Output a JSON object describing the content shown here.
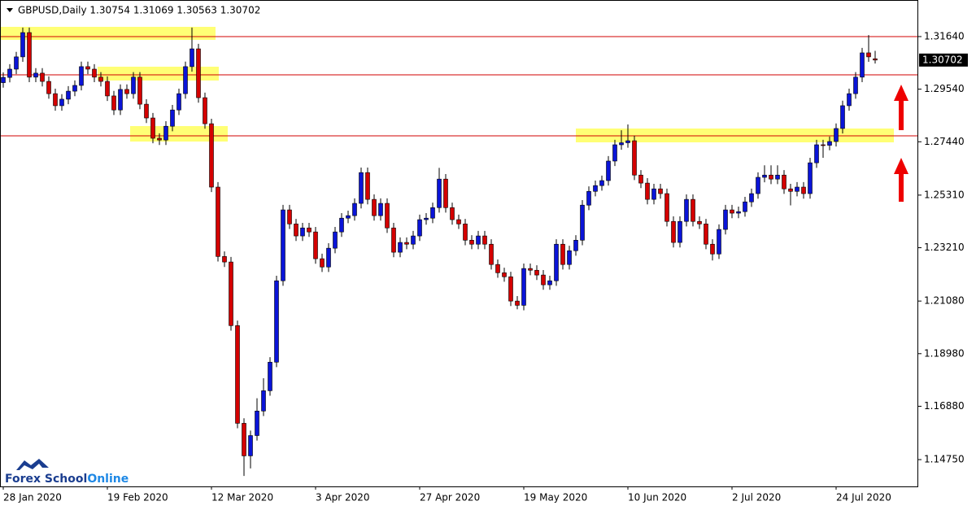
{
  "chart_data": {
    "type": "candlestick",
    "title": "GBPUSD,Daily  1.30754 1.31069 1.30563 1.30702",
    "watermark": [
      "Forex School",
      "Online"
    ],
    "last_price": {
      "value": 1.30702,
      "label": "1.30702"
    },
    "up_color": "#0a14d8",
    "down_color": "#d40000",
    "grid": false,
    "ylim": [
      1.1368,
      1.331
    ],
    "yticks": [
      {
        "value": 1.3164,
        "label": "1.31640"
      },
      {
        "value": 1.2954,
        "label": "1.29540"
      },
      {
        "value": 1.2744,
        "label": "1.27440"
      },
      {
        "value": 1.2531,
        "label": "1.25310"
      },
      {
        "value": 1.2321,
        "label": "1.23210"
      },
      {
        "value": 1.2108,
        "label": "1.21080"
      },
      {
        "value": 1.1898,
        "label": "1.18980"
      },
      {
        "value": 1.1688,
        "label": "1.16880"
      },
      {
        "value": 1.1475,
        "label": "1.14750"
      }
    ],
    "categories": [
      "28 Jan 2020",
      null,
      null,
      null,
      null,
      null,
      null,
      null,
      null,
      null,
      null,
      null,
      null,
      null,
      null,
      null,
      "19 Feb 2020",
      null,
      null,
      null,
      null,
      null,
      null,
      null,
      null,
      null,
      null,
      null,
      null,
      null,
      null,
      null,
      "12 Mar 2020",
      null,
      null,
      null,
      null,
      null,
      null,
      null,
      null,
      null,
      null,
      null,
      null,
      null,
      null,
      null,
      "3 Apr 2020",
      null,
      null,
      null,
      null,
      null,
      null,
      null,
      null,
      null,
      null,
      null,
      null,
      null,
      null,
      null,
      "27 Apr 2020",
      null,
      null,
      null,
      null,
      null,
      null,
      null,
      null,
      null,
      null,
      null,
      null,
      null,
      null,
      null,
      "19 May 2020",
      null,
      null,
      null,
      null,
      null,
      null,
      null,
      null,
      null,
      null,
      null,
      null,
      null,
      null,
      null,
      "10 Jun 2020",
      null,
      null,
      null,
      null,
      null,
      null,
      null,
      null,
      null,
      null,
      null,
      null,
      null,
      null,
      null,
      "2 Jul 2020",
      null,
      null,
      null,
      null,
      null,
      null,
      null,
      null,
      null,
      null,
      null,
      null,
      null,
      null,
      null,
      "24 Jul 2020",
      null,
      null,
      null,
      null,
      null,
      null
    ],
    "open": [
      1.298,
      1.3001,
      1.3034,
      1.3083,
      1.318,
      1.3002,
      1.3018,
      1.2985,
      1.2936,
      1.2888,
      1.2914,
      1.2946,
      1.2969,
      1.3044,
      1.3034,
      1.3002,
      1.2985,
      1.2927,
      1.2871,
      1.2953,
      1.2936,
      1.3002,
      1.2894,
      1.2839,
      1.2758,
      1.2751,
      1.2806,
      1.2871,
      1.2936,
      1.3044,
      1.3115,
      1.292,
      1.2816,
      1.2563,
      1.2286,
      1.2264,
      1.201,
      1.162,
      1.149,
      1.1571,
      1.1669,
      1.175,
      1.1864,
      1.2189,
      1.2472,
      1.2416,
      1.2368,
      1.24,
      1.2384,
      1.2277,
      1.2244,
      1.2319,
      1.2384,
      1.2439,
      1.2449,
      1.2498,
      1.2621,
      1.2514,
      1.2449,
      1.2498,
      1.24,
      1.2303,
      1.2342,
      1.2335,
      1.2368,
      1.2433,
      1.2439,
      1.2481,
      1.2595,
      1.2481,
      1.2433,
      1.2416,
      1.2351,
      1.2335,
      1.2368,
      1.2335,
      1.2254,
      1.2221,
      1.2205,
      1.2108,
      1.2091,
      1.2238,
      1.2231,
      1.2212,
      1.2173,
      1.2189,
      1.2335,
      1.2254,
      1.2309,
      1.2351,
      1.2491,
      1.2546,
      1.2569,
      1.2589,
      1.2667,
      1.2732,
      1.274,
      1.2748,
      1.2611,
      1.2579,
      1.2514,
      1.2556,
      1.2537,
      1.2426,
      1.2342,
      1.2426,
      1.2514,
      1.2426,
      1.2416,
      1.2335,
      1.2296,
      1.2394,
      1.2472,
      1.2459,
      1.2465,
      1.2504,
      1.2537,
      1.2602,
      1.2611,
      1.2595,
      1.2611,
      1.2556,
      1.2546,
      1.2563,
      1.2537,
      1.266,
      1.2732,
      1.273,
      1.2745,
      1.2797,
      1.2888,
      1.2936,
      1.3002,
      1.3099,
      1.30754
    ],
    "high": [
      1.3021,
      1.3054,
      1.3103,
      1.32,
      1.32,
      1.3038,
      1.3038,
      1.3005,
      1.2956,
      1.2934,
      1.2966,
      1.2989,
      1.3064,
      1.3064,
      1.3054,
      1.3022,
      1.3005,
      1.2947,
      1.2973,
      1.2973,
      1.3022,
      1.3022,
      1.2914,
      1.2859,
      1.2778,
      1.2826,
      1.2891,
      1.2956,
      1.3064,
      1.32,
      1.3135,
      1.294,
      1.2836,
      1.2583,
      1.2306,
      1.2284,
      1.203,
      1.164,
      1.1591,
      1.172,
      1.18,
      1.1884,
      1.2209,
      1.2492,
      1.2492,
      1.2436,
      1.242,
      1.242,
      1.2404,
      1.2297,
      1.2339,
      1.2404,
      1.2459,
      1.2469,
      1.2518,
      1.2641,
      1.2641,
      1.2534,
      1.2518,
      1.2518,
      1.242,
      1.2362,
      1.2362,
      1.2388,
      1.2453,
      1.2459,
      1.2501,
      1.264,
      1.2615,
      1.2501,
      1.2453,
      1.2436,
      1.2371,
      1.2388,
      1.2388,
      1.2355,
      1.2274,
      1.2241,
      1.2225,
      1.2128,
      1.2258,
      1.2258,
      1.2251,
      1.2232,
      1.2209,
      1.2355,
      1.2355,
      1.2329,
      1.2371,
      1.2511,
      1.2566,
      1.2589,
      1.2609,
      1.2687,
      1.2752,
      1.279,
      1.2813,
      1.2768,
      1.2631,
      1.2599,
      1.2576,
      1.2576,
      1.2557,
      1.2446,
      1.2446,
      1.2534,
      1.2534,
      1.2446,
      1.2436,
      1.2355,
      1.2414,
      1.2492,
      1.2492,
      1.2485,
      1.2524,
      1.2557,
      1.2622,
      1.265,
      1.265,
      1.265,
      1.2631,
      1.2576,
      1.2583,
      1.2583,
      1.268,
      1.2752,
      1.2752,
      1.2765,
      1.2817,
      1.2908,
      1.2956,
      1.3022,
      1.3119,
      1.317,
      1.31069
    ],
    "low": [
      1.296,
      1.2981,
      1.3014,
      1.3063,
      1.2982,
      1.2982,
      1.2965,
      1.2916,
      1.2868,
      1.2868,
      1.2894,
      1.2926,
      1.2949,
      1.3014,
      1.2982,
      1.2965,
      1.2907,
      1.2851,
      1.2851,
      1.2916,
      1.2916,
      1.2874,
      1.2819,
      1.2738,
      1.2731,
      1.2731,
      1.2786,
      1.2851,
      1.2916,
      1.3024,
      1.29,
      1.2796,
      1.2543,
      1.2266,
      1.2244,
      1.199,
      1.16,
      1.141,
      1.144,
      1.1551,
      1.1649,
      1.173,
      1.1844,
      1.2169,
      1.2396,
      1.2348,
      1.2348,
      1.2364,
      1.2257,
      1.2224,
      1.2224,
      1.2299,
      1.2364,
      1.2419,
      1.2429,
      1.2478,
      1.2494,
      1.2429,
      1.2429,
      1.238,
      1.2283,
      1.2283,
      1.2315,
      1.2315,
      1.2348,
      1.2413,
      1.2419,
      1.2461,
      1.2461,
      1.2413,
      1.2396,
      1.2331,
      1.2315,
      1.2315,
      1.2315,
      1.2234,
      1.2201,
      1.2185,
      1.2088,
      1.2075,
      1.2071,
      1.2211,
      1.2192,
      1.2153,
      1.2153,
      1.2169,
      1.2234,
      1.2234,
      1.2289,
      1.2331,
      1.2471,
      1.2526,
      1.2549,
      1.2569,
      1.2647,
      1.2712,
      1.272,
      1.2591,
      1.2559,
      1.2494,
      1.2494,
      1.2517,
      1.2406,
      1.2322,
      1.2322,
      1.2406,
      1.2406,
      1.2396,
      1.2315,
      1.227,
      1.2276,
      1.2374,
      1.2439,
      1.2439,
      1.2445,
      1.2484,
      1.2517,
      1.2582,
      1.2575,
      1.2575,
      1.2536,
      1.249,
      1.2526,
      1.2517,
      1.2517,
      1.264,
      1.268,
      1.271,
      1.2725,
      1.2777,
      1.2868,
      1.2916,
      1.2982,
      1.3063,
      1.30563
    ],
    "close": [
      1.3001,
      1.3034,
      1.3083,
      1.318,
      1.3002,
      1.3018,
      1.2985,
      1.2936,
      1.2888,
      1.2914,
      1.2946,
      1.2969,
      1.3044,
      1.3034,
      1.3002,
      1.2985,
      1.2927,
      1.2871,
      1.2953,
      1.2936,
      1.3002,
      1.2894,
      1.2839,
      1.2758,
      1.2751,
      1.2806,
      1.2871,
      1.2936,
      1.3044,
      1.3115,
      1.292,
      1.2816,
      1.2563,
      1.2286,
      1.2264,
      1.201,
      1.162,
      1.149,
      1.1571,
      1.1669,
      1.175,
      1.1864,
      1.2189,
      1.2472,
      1.2416,
      1.2368,
      1.24,
      1.2384,
      1.2277,
      1.2244,
      1.2319,
      1.2384,
      1.2439,
      1.2449,
      1.2498,
      1.2621,
      1.2514,
      1.2449,
      1.2498,
      1.24,
      1.2303,
      1.2342,
      1.2335,
      1.2368,
      1.2433,
      1.2439,
      1.2481,
      1.2595,
      1.2481,
      1.2433,
      1.2416,
      1.2351,
      1.2335,
      1.2368,
      1.2335,
      1.2254,
      1.2221,
      1.2205,
      1.2108,
      1.2091,
      1.2238,
      1.2231,
      1.2212,
      1.2173,
      1.2189,
      1.2335,
      1.2254,
      1.2309,
      1.2351,
      1.2491,
      1.2546,
      1.2569,
      1.2589,
      1.2667,
      1.2732,
      1.274,
      1.2748,
      1.2611,
      1.2579,
      1.2514,
      1.2556,
      1.2537,
      1.2426,
      1.2342,
      1.2426,
      1.2514,
      1.2426,
      1.2416,
      1.2335,
      1.2296,
      1.2394,
      1.2472,
      1.2459,
      1.2465,
      1.2504,
      1.2537,
      1.2602,
      1.2611,
      1.2595,
      1.2611,
      1.2556,
      1.2546,
      1.2563,
      1.2537,
      1.266,
      1.2732,
      1.273,
      1.2745,
      1.2797,
      1.2888,
      1.2936,
      1.3002,
      1.3099,
      1.3083,
      1.30702
    ]
  }
}
